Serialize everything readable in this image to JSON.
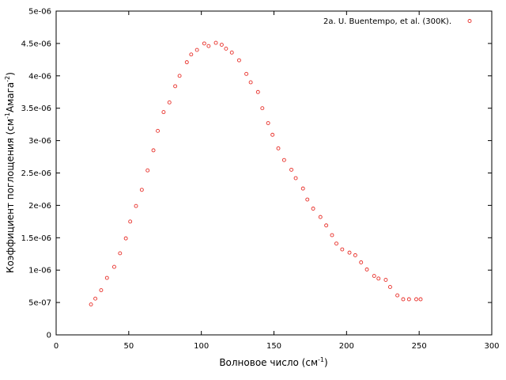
{
  "chart_data": {
    "type": "scatter",
    "title": "",
    "xlabel": "Волновое число (см",
    "xlabel_sup": "-1",
    "xlabel_end": ")",
    "ylabel": "Коэффициент поглощения (см",
    "ylabel_sup1": "-1",
    "ylabel_mid": "Амага",
    "ylabel_sup2": "-2",
    "ylabel_end": ")",
    "xlim": [
      0,
      300
    ],
    "ylim": [
      0,
      5e-06
    ],
    "x_ticks": [
      0,
      50,
      100,
      150,
      200,
      250,
      300
    ],
    "x_tick_labels": [
      "0",
      "50",
      "100",
      "150",
      "200",
      "250",
      "300"
    ],
    "y_ticks": [
      0,
      5e-07,
      1e-06,
      1.5e-06,
      2e-06,
      2.5e-06,
      3e-06,
      3.5e-06,
      4e-06,
      4.5e-06,
      5e-06
    ],
    "y_tick_labels": [
      "0",
      "5e-07",
      "1e-06",
      "1.5e-06",
      "2e-06",
      "2.5e-06",
      "3e-06",
      "3.5e-06",
      "4e-06",
      "4.5e-06",
      "5e-06"
    ],
    "grid": false,
    "legend_position": "top-right",
    "series": [
      {
        "name": "2a. U. Buentempo, et al. (300K).",
        "color": "#e8302a",
        "marker": "circle",
        "points": [
          [
            24,
            4.7e-07
          ],
          [
            27,
            5.6e-07
          ],
          [
            31,
            6.9e-07
          ],
          [
            35,
            8.8e-07
          ],
          [
            40,
            1.05e-06
          ],
          [
            44,
            1.26e-06
          ],
          [
            48,
            1.49e-06
          ],
          [
            51,
            1.75e-06
          ],
          [
            55,
            1.99e-06
          ],
          [
            59,
            2.24e-06
          ],
          [
            63,
            2.54e-06
          ],
          [
            67,
            2.85e-06
          ],
          [
            70,
            3.15e-06
          ],
          [
            74,
            3.44e-06
          ],
          [
            78,
            3.59e-06
          ],
          [
            82,
            3.84e-06
          ],
          [
            85,
            4e-06
          ],
          [
            90,
            4.21e-06
          ],
          [
            93,
            4.33e-06
          ],
          [
            97,
            4.4e-06
          ],
          [
            102,
            4.5e-06
          ],
          [
            105,
            4.46e-06
          ],
          [
            110,
            4.51e-06
          ],
          [
            114,
            4.48e-06
          ],
          [
            117,
            4.42e-06
          ],
          [
            121,
            4.36e-06
          ],
          [
            126,
            4.24e-06
          ],
          [
            131,
            4.03e-06
          ],
          [
            134,
            3.9e-06
          ],
          [
            139,
            3.75e-06
          ],
          [
            142,
            3.5e-06
          ],
          [
            146,
            3.27e-06
          ],
          [
            149,
            3.09e-06
          ],
          [
            153,
            2.88e-06
          ],
          [
            157,
            2.7e-06
          ],
          [
            162,
            2.55e-06
          ],
          [
            165,
            2.42e-06
          ],
          [
            170,
            2.26e-06
          ],
          [
            173,
            2.09e-06
          ],
          [
            177,
            1.95e-06
          ],
          [
            182,
            1.82e-06
          ],
          [
            186,
            1.69e-06
          ],
          [
            190,
            1.54e-06
          ],
          [
            193,
            1.41e-06
          ],
          [
            197,
            1.32e-06
          ],
          [
            202,
            1.27e-06
          ],
          [
            206,
            1.23e-06
          ],
          [
            210,
            1.12e-06
          ],
          [
            214,
            1.01e-06
          ],
          [
            219,
            9.1e-07
          ],
          [
            222,
            8.7e-07
          ],
          [
            227,
            8.5e-07
          ],
          [
            230,
            7.4e-07
          ],
          [
            235,
            6.1e-07
          ],
          [
            239,
            5.5e-07
          ],
          [
            243,
            5.5e-07
          ],
          [
            248,
            5.5e-07
          ],
          [
            251,
            5.5e-07
          ]
        ]
      }
    ]
  }
}
